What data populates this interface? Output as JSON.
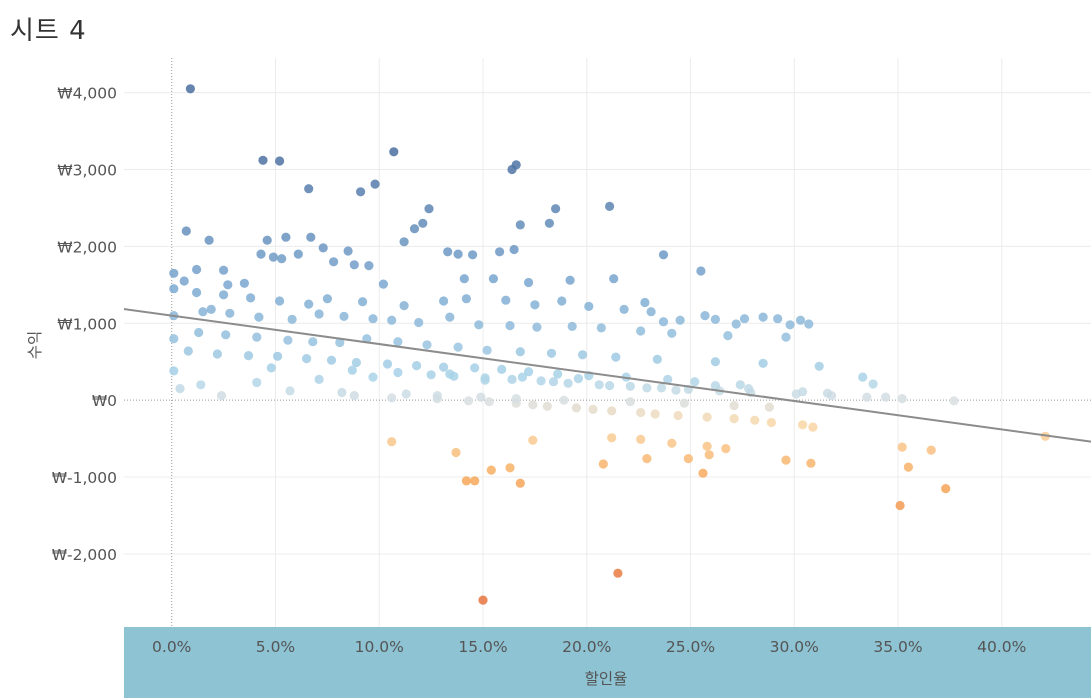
{
  "sheet": {
    "title": "시트 4"
  },
  "colors": {
    "xaxis_band": "#8dc3d3",
    "trend_line": "#8c8c8c",
    "gradient": [
      "#4a6fa0",
      "#7aa7d0",
      "#a9d3e8",
      "#d8dfe2",
      "#f9d7a7",
      "#f8a95a",
      "#e67540"
    ]
  },
  "chart_data": {
    "type": "scatter",
    "title": "",
    "xlabel": "할인율",
    "ylabel": "수익",
    "xlim": [
      -0.023,
      0.443
    ],
    "ylim": [
      -2950,
      4450
    ],
    "xticks": [
      0,
      0.05,
      0.1,
      0.15,
      0.2,
      0.25,
      0.3,
      0.35,
      0.4
    ],
    "xtick_labels": [
      "0.0%",
      "5.0%",
      "10.0%",
      "15.0%",
      "20.0%",
      "25.0%",
      "30.0%",
      "35.0%",
      "40.0%"
    ],
    "yticks": [
      4000,
      3000,
      2000,
      1000,
      0,
      -1000,
      -2000
    ],
    "ytick_labels": [
      "₩4,000",
      "₩3,000",
      "₩2,000",
      "₩1,000",
      "₩0",
      "₩-1,000",
      "₩-2,000"
    ],
    "grid": true,
    "color_encoding": "profit",
    "trend_line": {
      "x": [
        -0.023,
        0.443
      ],
      "y": [
        1185,
        -540
      ]
    },
    "series": [
      {
        "x": [
          0.009,
          0.044,
          0.052,
          0.098,
          0.066,
          0.107,
          0.164,
          0.166,
          0.007,
          0.055,
          0.046,
          0.091,
          0.124,
          0.185,
          0.211,
          0.168,
          0.182,
          0.117,
          0.121,
          0.133,
          0.158,
          0.165,
          0.237,
          0.255,
          0.213,
          0.237,
          0.303,
          0.307,
          0.285,
          0.292,
          0.049,
          0.043,
          0.018,
          0.001,
          0.012,
          0.006,
          0.025,
          0.067,
          0.085,
          0.073,
          0.112,
          0.138,
          0.145,
          0.095,
          0.053,
          0.035,
          0.019,
          0.027,
          0.061,
          0.078,
          0.088,
          0.102,
          0.141,
          0.155,
          0.172,
          0.192,
          0.228,
          0.245,
          0.262,
          0.272,
          0.001,
          0.012,
          0.025,
          0.038,
          0.052,
          0.066,
          0.075,
          0.092,
          0.112,
          0.131,
          0.142,
          0.161,
          0.175,
          0.188,
          0.201,
          0.218,
          0.231,
          0.257,
          0.276,
          0.298,
          0.001,
          0.015,
          0.028,
          0.042,
          0.058,
          0.071,
          0.083,
          0.097,
          0.106,
          0.119,
          0.134,
          0.148,
          0.163,
          0.176,
          0.193,
          0.207,
          0.226,
          0.241,
          0.268,
          0.296,
          0.001,
          0.013,
          0.026,
          0.041,
          0.056,
          0.068,
          0.081,
          0.094,
          0.109,
          0.123,
          0.138,
          0.152,
          0.168,
          0.183,
          0.198,
          0.214,
          0.234,
          0.262,
          0.285,
          0.312,
          0.333,
          0.338,
          0.008,
          0.022,
          0.037,
          0.051,
          0.065,
          0.077,
          0.089,
          0.104,
          0.118,
          0.131,
          0.146,
          0.159,
          0.172,
          0.186,
          0.201,
          0.219,
          0.239,
          0.252,
          0.274,
          0.001,
          0.048,
          0.087,
          0.109,
          0.125,
          0.136,
          0.151,
          0.164,
          0.178,
          0.191,
          0.206,
          0.221,
          0.236,
          0.249,
          0.264,
          0.279,
          0.301,
          0.318,
          0.335,
          0.352,
          0.377,
          0.088,
          0.106,
          0.128,
          0.143,
          0.153,
          0.166,
          0.174,
          0.181,
          0.195,
          0.203,
          0.212,
          0.226,
          0.233,
          0.244,
          0.258,
          0.271,
          0.281,
          0.289,
          0.304,
          0.309,
          0.106,
          0.174,
          0.212,
          0.226,
          0.241,
          0.258,
          0.267,
          0.296,
          0.308,
          0.352,
          0.366,
          0.421,
          0.137,
          0.142,
          0.163,
          0.168,
          0.154,
          0.146,
          0.208,
          0.229,
          0.249,
          0.259,
          0.256,
          0.351,
          0.373,
          0.355,
          0.215,
          0.15,
          0.014,
          0.041,
          0.071,
          0.097,
          0.134,
          0.151,
          0.169,
          0.184,
          0.196,
          0.211,
          0.229,
          0.243,
          0.262,
          0.278,
          0.304,
          0.316,
          0.344,
          0.004,
          0.024,
          0.057,
          0.082,
          0.113,
          0.128,
          0.149,
          0.166,
          0.189,
          0.221,
          0.247,
          0.271,
          0.288
        ],
        "y": [
          4050,
          3120,
          3110,
          2810,
          2750,
          3230,
          3000,
          3060,
          2200,
          2120,
          2080,
          2710,
          2490,
          2490,
          2520,
          2280,
          2300,
          2230,
          2300,
          1930,
          1930,
          1960,
          1890,
          1680,
          1580,
          1020,
          1040,
          990,
          1080,
          1060,
          1860,
          1900,
          2080,
          1650,
          1700,
          1550,
          1690,
          2120,
          1940,
          1980,
          2060,
          1900,
          1890,
          1750,
          1840,
          1520,
          1180,
          1500,
          1900,
          1800,
          1760,
          1510,
          1580,
          1580,
          1530,
          1560,
          1270,
          1040,
          1050,
          990,
          1450,
          1400,
          1370,
          1330,
          1290,
          1250,
          1320,
          1280,
          1230,
          1290,
          1320,
          1300,
          1240,
          1290,
          1220,
          1180,
          1150,
          1100,
          1060,
          980,
          1100,
          1150,
          1130,
          1080,
          1050,
          1120,
          1090,
          1060,
          1040,
          1010,
          1080,
          980,
          970,
          950,
          960,
          940,
          900,
          870,
          840,
          820,
          800,
          880,
          850,
          820,
          780,
          760,
          750,
          800,
          760,
          720,
          690,
          650,
          630,
          610,
          590,
          560,
          530,
          500,
          480,
          440,
          300,
          210,
          640,
          600,
          580,
          570,
          540,
          520,
          490,
          470,
          450,
          430,
          420,
          400,
          370,
          340,
          320,
          300,
          270,
          240,
          200,
          380,
          420,
          390,
          360,
          330,
          310,
          290,
          270,
          250,
          220,
          200,
          180,
          160,
          140,
          120,
          100,
          80,
          60,
          40,
          20,
          -10,
          60,
          30,
          20,
          -10,
          -20,
          -40,
          -60,
          -80,
          -100,
          -120,
          -140,
          -160,
          -180,
          -200,
          -220,
          -240,
          -260,
          -290,
          -320,
          -350,
          -540,
          -520,
          -490,
          -510,
          -560,
          -600,
          -630,
          -780,
          -820,
          -610,
          -650,
          -470,
          -680,
          -1050,
          -880,
          -1080,
          -910,
          -1050,
          -830,
          -760,
          -760,
          -710,
          -950,
          -1370,
          -1150,
          -870,
          -2250,
          -2600,
          200,
          230,
          270,
          300,
          340,
          260,
          300,
          240,
          280,
          190,
          160,
          130,
          190,
          150,
          110,
          90,
          40,
          150,
          60,
          120,
          100,
          80,
          60,
          40,
          20,
          0,
          -20,
          -40,
          -70,
          -90
        ]
      }
    ]
  }
}
